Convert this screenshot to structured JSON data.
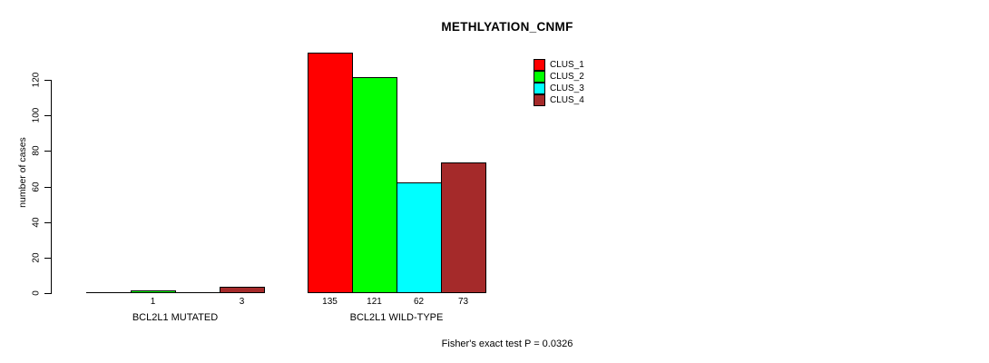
{
  "title": "METHLYATION_CNMF",
  "ylabel": "number of cases",
  "footer": "Fisher's exact test P = 0.0326",
  "legend": {
    "entries": [
      {
        "label": "CLUS_1",
        "color": "#FF0000"
      },
      {
        "label": "CLUS_2",
        "color": "#00FF00"
      },
      {
        "label": "CLUS_3",
        "color": "#00FFFF"
      },
      {
        "label": "CLUS_4",
        "color": "#A52A2A"
      }
    ]
  },
  "chart_data": {
    "type": "bar",
    "title": "METHLYATION_CNMF",
    "xlabel": "",
    "ylabel": "number of cases",
    "categories": [
      "BCL2L1 MUTATED",
      "BCL2L1 WILD-TYPE"
    ],
    "series": [
      {
        "name": "CLUS_1",
        "color": "#FF0000",
        "values": [
          0,
          135
        ]
      },
      {
        "name": "CLUS_2",
        "color": "#00FF00",
        "values": [
          1,
          121
        ]
      },
      {
        "name": "CLUS_3",
        "color": "#00FFFF",
        "values": [
          0,
          62
        ]
      },
      {
        "name": "CLUS_4",
        "color": "#A52A2A",
        "values": [
          3,
          73
        ]
      }
    ],
    "bar_value_labels": [
      [
        "",
        "1",
        "",
        "3"
      ],
      [
        "135",
        "121",
        "62",
        "73"
      ]
    ],
    "yticks": [
      0,
      20,
      40,
      60,
      80,
      100,
      120
    ],
    "ylim": [
      0,
      135
    ],
    "grid": false,
    "legend_position": "top-right",
    "annotation": "Fisher's exact test P = 0.0326",
    "bar_border_color": "#000000",
    "background_color": "#FFFFFF"
  }
}
